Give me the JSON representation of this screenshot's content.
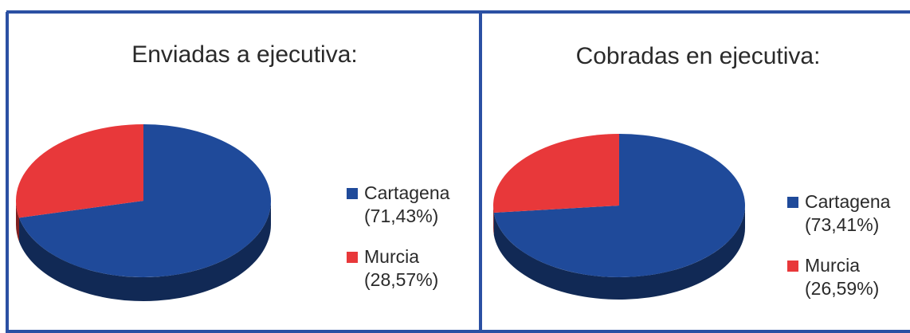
{
  "chart_data": [
    {
      "type": "pie",
      "title": "Enviadas a ejecutiva:",
      "categories": [
        "Cartagena",
        "Murcia"
      ],
      "values": [
        71.43,
        28.57
      ],
      "value_labels": [
        "(71,43%)",
        "(28,57%)"
      ],
      "colors": [
        "#1f4a9a",
        "#e8383a"
      ],
      "legend": "right"
    },
    {
      "type": "pie",
      "title": "Cobradas en ejecutiva:",
      "categories": [
        "Cartagena",
        "Murcia"
      ],
      "values": [
        73.41,
        26.59
      ],
      "value_labels": [
        "(73,41%)",
        "(26,59%)"
      ],
      "colors": [
        "#1f4a9a",
        "#e8383a"
      ],
      "legend": "right"
    }
  ]
}
